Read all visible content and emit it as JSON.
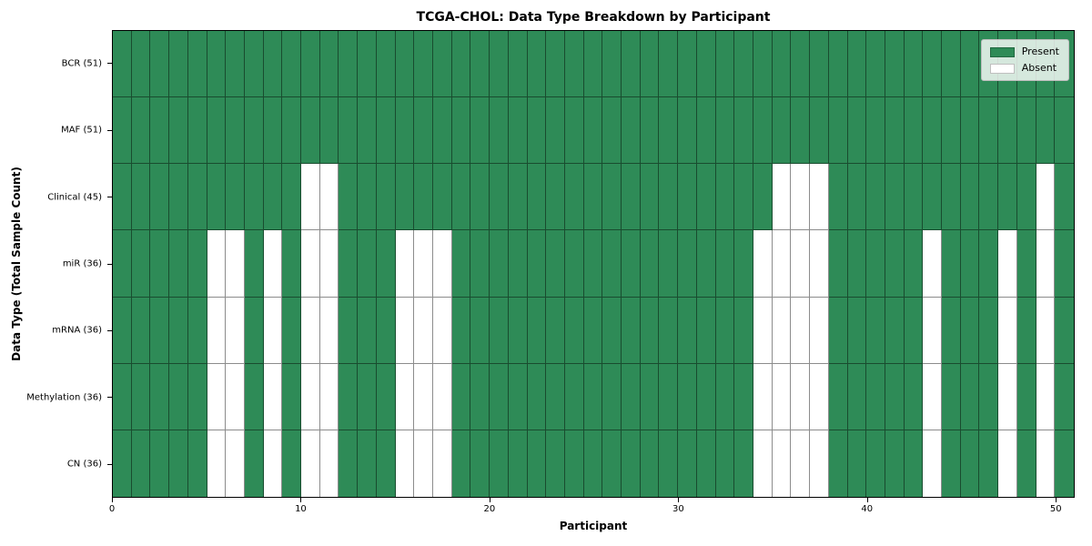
{
  "chart_data": {
    "type": "heatmap",
    "title": "TCGA-CHOL: Data Type Breakdown by Participant",
    "xlabel": "Participant",
    "ylabel": "Data Type (Total Sample Count)",
    "n_participants": 51,
    "x_tick_values": [
      0,
      10,
      20,
      30,
      40,
      50
    ],
    "x_tick_labels": [
      "0",
      "10",
      "20",
      "30",
      "40",
      "50"
    ],
    "legend": [
      {
        "label": "Present",
        "color": "#2e8b57"
      },
      {
        "label": "Absent",
        "color": "#ffffff"
      }
    ],
    "colors": {
      "present": "#2e8b57",
      "absent": "#ffffff",
      "grid_line": "rgba(0,0,0,0.45)"
    },
    "legend_position": "upper right",
    "grid": true,
    "rows": [
      {
        "label": "BCR (51)",
        "total": 51,
        "absent_participants": []
      },
      {
        "label": "MAF (51)",
        "total": 51,
        "absent_participants": []
      },
      {
        "label": "Clinical (45)",
        "total": 45,
        "absent_participants": [
          10,
          11,
          35,
          36,
          37,
          49
        ]
      },
      {
        "label": "miR (36)",
        "total": 36,
        "absent_participants": [
          5,
          6,
          8,
          10,
          11,
          15,
          16,
          17,
          34,
          35,
          36,
          37,
          43,
          47,
          49
        ]
      },
      {
        "label": "mRNA (36)",
        "total": 36,
        "absent_participants": [
          5,
          6,
          8,
          10,
          11,
          15,
          16,
          17,
          34,
          35,
          36,
          37,
          43,
          47,
          49
        ]
      },
      {
        "label": "Methylation (36)",
        "total": 36,
        "absent_participants": [
          5,
          6,
          8,
          10,
          11,
          15,
          16,
          17,
          34,
          35,
          36,
          37,
          43,
          47,
          49
        ]
      },
      {
        "label": "CN (36)",
        "total": 36,
        "absent_participants": [
          5,
          6,
          8,
          10,
          11,
          15,
          16,
          17,
          34,
          35,
          36,
          37,
          43,
          47,
          49
        ]
      }
    ]
  }
}
